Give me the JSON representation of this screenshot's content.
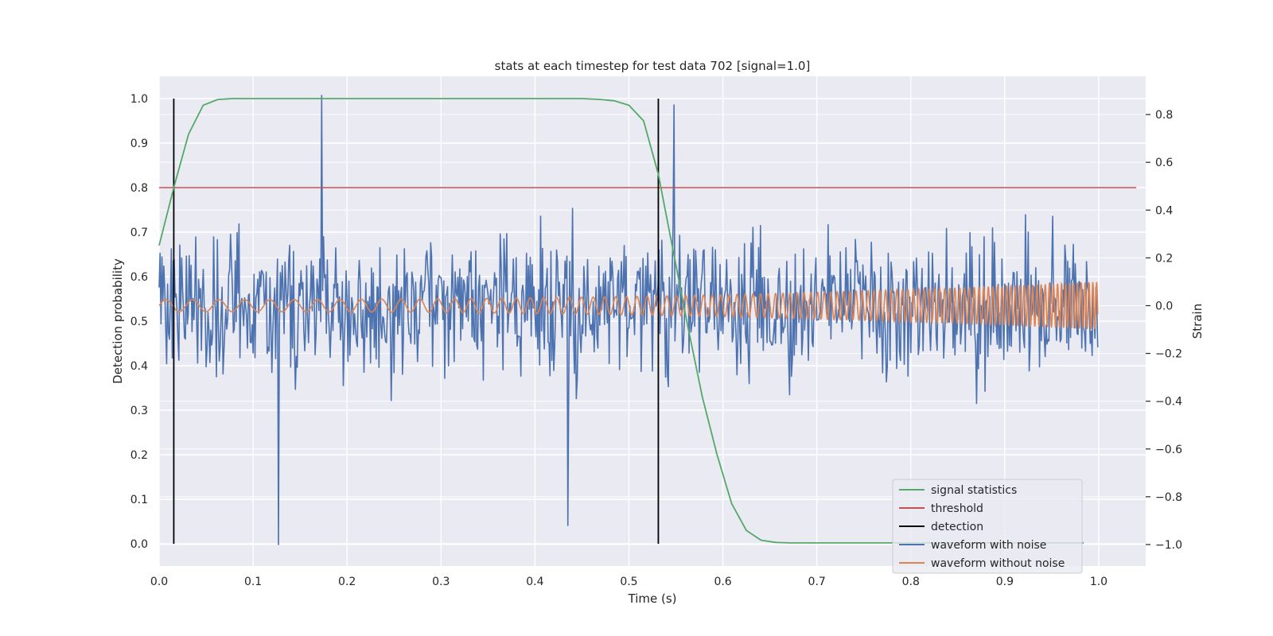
{
  "chart_data": {
    "type": "line",
    "title": "stats at each timestep for test data 702 [signal=1.0]",
    "xlabel": "Time (s)",
    "ylabel": "Detection probability",
    "y2label": "Strain",
    "xlim": [
      0.0,
      1.05
    ],
    "ylim": [
      -0.05,
      1.05
    ],
    "y2lim": [
      -1.09,
      0.96
    ],
    "xticks": [
      "0.0",
      "0.1",
      "0.2",
      "0.3",
      "0.4",
      "0.5",
      "0.6",
      "0.7",
      "0.8",
      "0.9",
      "1.0"
    ],
    "yticks": [
      "0.0",
      "0.1",
      "0.2",
      "0.3",
      "0.4",
      "0.5",
      "0.6",
      "0.7",
      "0.8",
      "0.9",
      "1.0"
    ],
    "y2ticks": [
      "−1.0",
      "−0.8",
      "−0.6",
      "−0.4",
      "−0.2",
      "0.0",
      "0.2",
      "0.4",
      "0.6",
      "0.8"
    ],
    "grid": true,
    "legend_position": "lower-right",
    "colors": {
      "signal_statistics": "#55a868",
      "threshold": "#c44e52",
      "detection": "#000000",
      "waveform_with_noise": "#4c72b0",
      "waveform_without_noise": "#dd8452",
      "plot_background": "#eaeaf2",
      "grid": "#ffffff"
    },
    "series": [
      {
        "name": "signal statistics",
        "axis": "left",
        "x": [
          0.0,
          0.0156,
          0.0313,
          0.0469,
          0.0625,
          0.0781,
          0.0938,
          0.1094,
          0.125,
          0.2,
          0.3,
          0.4,
          0.45,
          0.47,
          0.4844,
          0.5,
          0.5156,
          0.5313,
          0.5469,
          0.5625,
          0.5781,
          0.5938,
          0.6094,
          0.625,
          0.6406,
          0.6563,
          0.6719,
          0.7,
          0.8,
          0.9,
          0.984
        ],
        "y": [
          0.67,
          0.8,
          0.92,
          0.985,
          0.998,
          1.0,
          1.0,
          1.0,
          1.0,
          1.0,
          1.0,
          1.0,
          1.0,
          0.998,
          0.995,
          0.985,
          0.95,
          0.83,
          0.66,
          0.49,
          0.33,
          0.2,
          0.09,
          0.03,
          0.008,
          0.003,
          0.002,
          0.002,
          0.002,
          0.002,
          0.002
        ]
      },
      {
        "name": "threshold",
        "axis": "left",
        "x": [
          0.0,
          1.04
        ],
        "y": [
          0.8,
          0.8
        ]
      },
      {
        "name": "detection",
        "axis": "left",
        "x": [
          0.0156,
          0.5313
        ],
        "y_range": [
          0.0,
          1.0
        ]
      },
      {
        "name": "waveform with noise",
        "axis": "right",
        "x_range": [
          0.0,
          0.999
        ],
        "sample_count": 1000,
        "y_envelope": [
          -1.0,
          0.88
        ],
        "notable_peaks": [
          {
            "x": 0.173,
            "y": 0.88
          },
          {
            "x": 0.127,
            "y": -1.0
          },
          {
            "x": 0.548,
            "y": 0.84
          },
          {
            "x": 0.435,
            "y": -0.92
          }
        ]
      },
      {
        "name": "waveform without noise",
        "axis": "right",
        "x_range": [
          0.0,
          0.999
        ],
        "amplitude_start": 0.025,
        "amplitude_end": 0.1,
        "frequency_start_hz": 35,
        "frequency_end_hz": 250
      }
    ]
  }
}
